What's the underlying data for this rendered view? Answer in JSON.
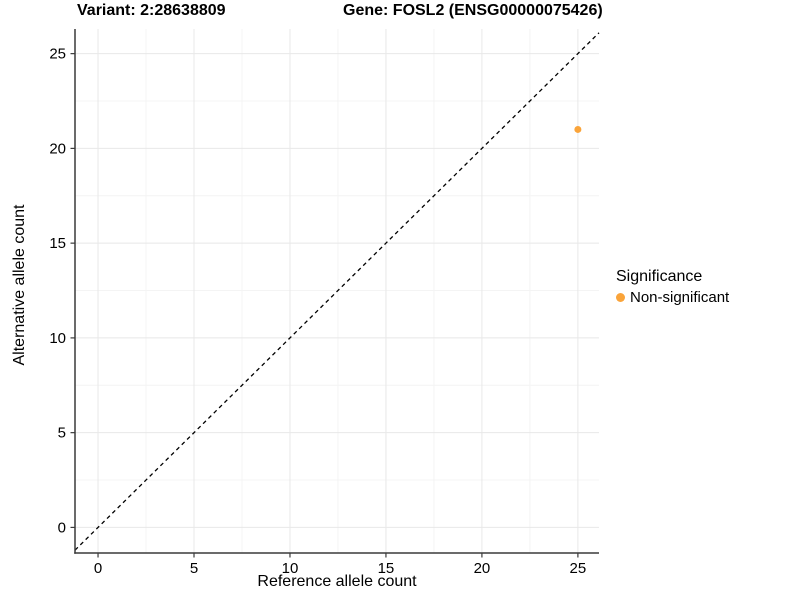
{
  "titles": {
    "variant": "Variant: 2:28638809",
    "gene": "Gene: FOSL2 (ENSG00000075426)"
  },
  "colors": {
    "point": "#FAA43A",
    "axis": "#3a3a3a",
    "grid_major": "#e8e8e8",
    "grid_minor": "#f4f4f4",
    "identity_line": "#000000",
    "text": "#000000",
    "background": "#ffffff"
  },
  "chart_data": {
    "type": "scatter",
    "title": "Variant: 2:28638809  /  Gene: FOSL2 (ENSG00000075426)",
    "xlabel": "Reference allele count",
    "ylabel": "Alternative allele count",
    "x_ticks": [
      0,
      5,
      10,
      15,
      20,
      25
    ],
    "y_ticks": [
      0,
      5,
      10,
      15,
      20,
      25
    ],
    "x_minor_ticks": [
      2.5,
      7.5,
      12.5,
      17.5,
      22.5
    ],
    "y_minor_ticks": [
      2.5,
      7.5,
      12.5,
      17.5,
      22.5
    ],
    "xlim": [
      -1.2,
      26.1
    ],
    "ylim": [
      -1.35,
      26.3
    ],
    "grid": "major+minor",
    "points": [
      {
        "x": 25,
        "y": 21,
        "series": "Non-significant"
      }
    ],
    "identity_line": {
      "slope": 1,
      "intercept": 0,
      "style": "dashed"
    },
    "legend": {
      "title": "Significance",
      "position": "right",
      "items": [
        {
          "label": "Non-significant",
          "color": "#FAA43A"
        }
      ]
    }
  }
}
